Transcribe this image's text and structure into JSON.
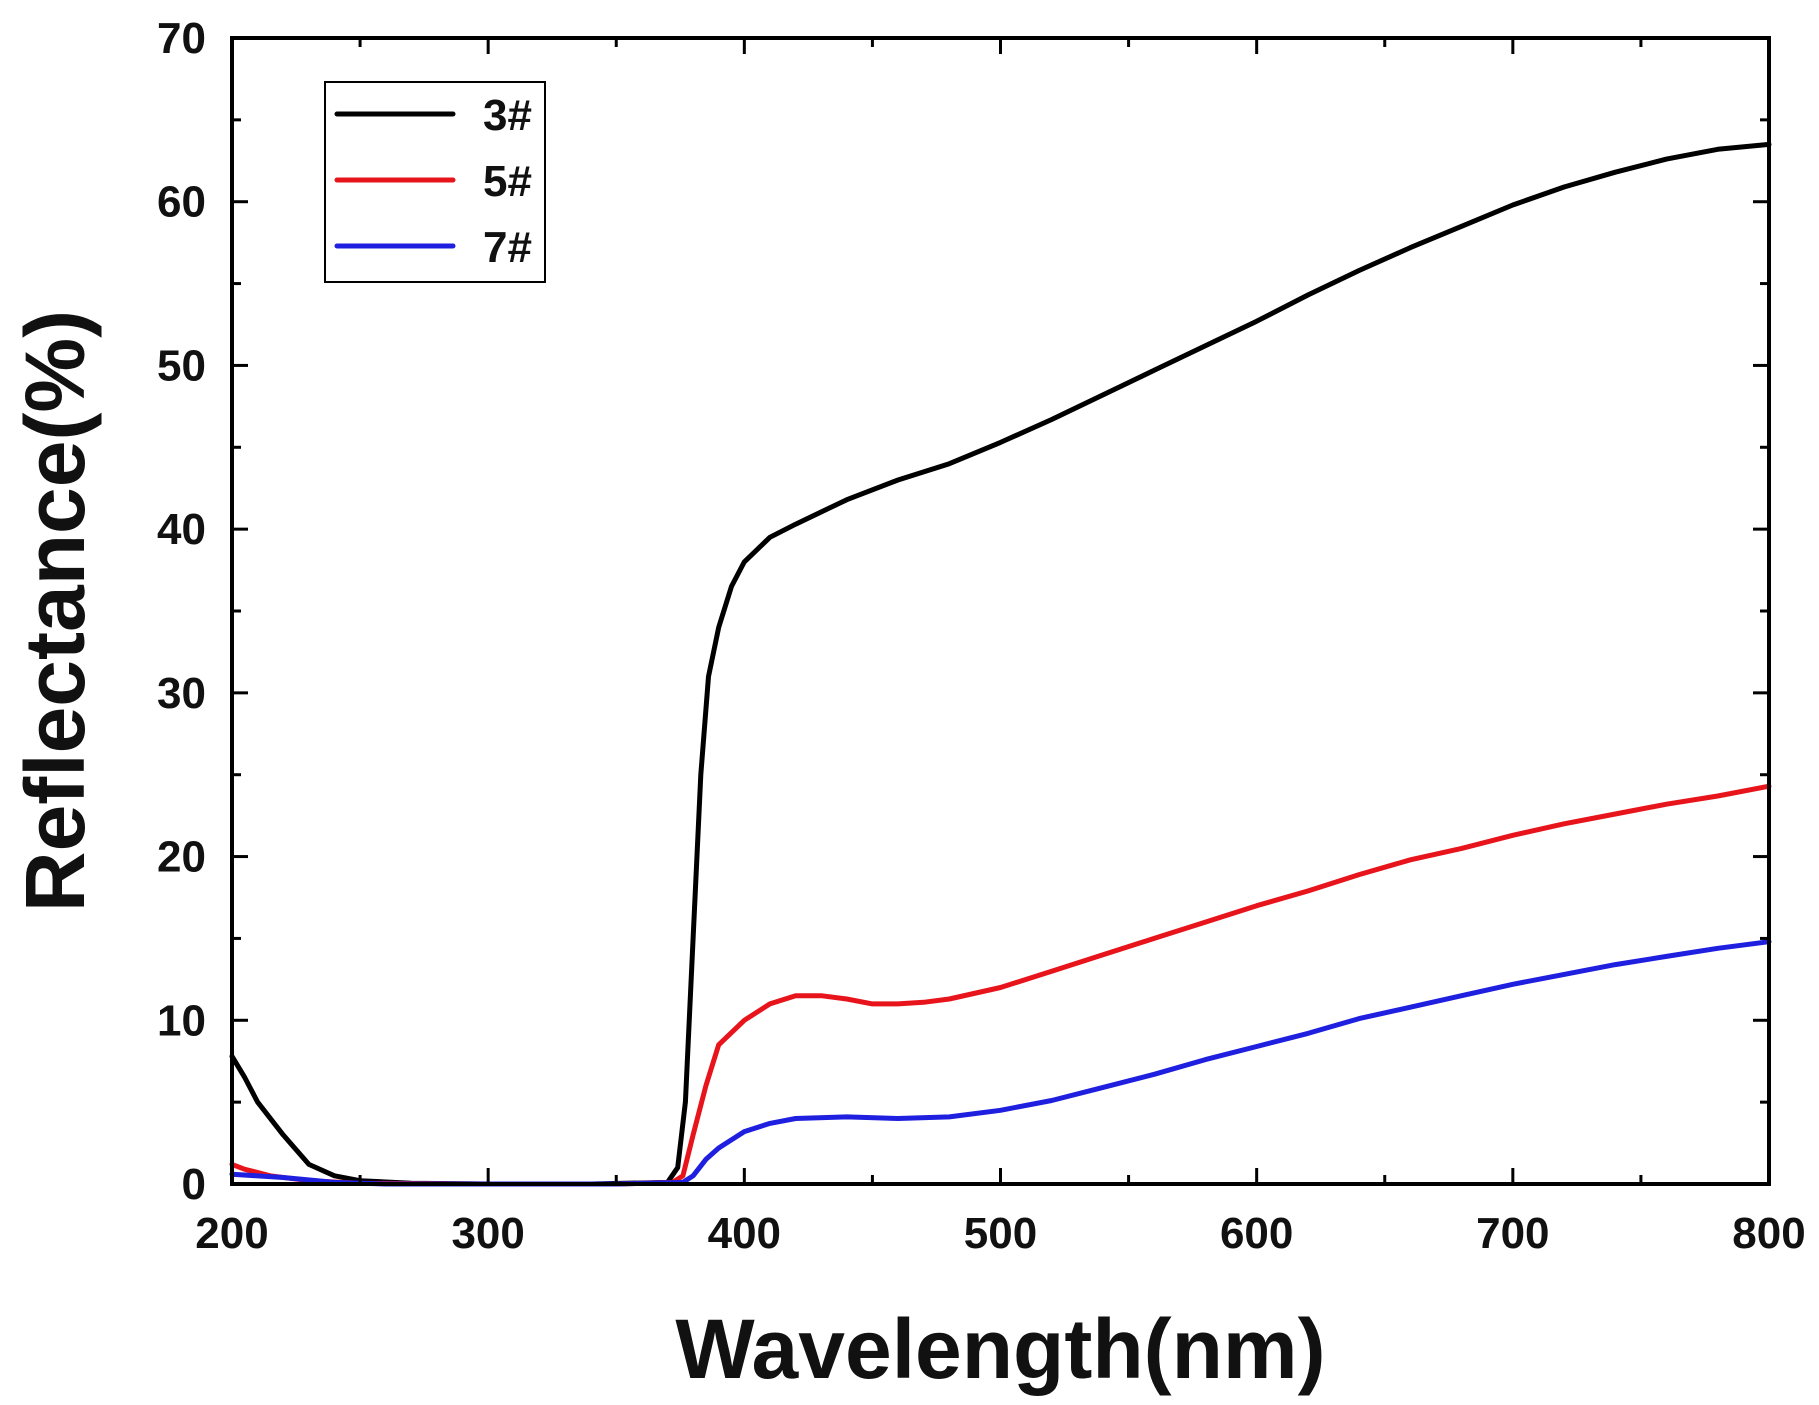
{
  "chart_data": {
    "type": "line",
    "title": "",
    "xlabel": "Wavelength(nm)",
    "ylabel": "Reflectance(%)",
    "xlim": [
      200,
      800
    ],
    "ylim": [
      0,
      70
    ],
    "xticks": [
      200,
      300,
      400,
      500,
      600,
      700,
      800
    ],
    "yticks": [
      0,
      10,
      20,
      30,
      40,
      50,
      60,
      70
    ],
    "grid": false,
    "legend_position": "top-left",
    "series": [
      {
        "name": "3#",
        "color": "#000000",
        "x": [
          200,
          205,
          210,
          220,
          230,
          240,
          250,
          270,
          300,
          340,
          370,
          374,
          377,
          380,
          383,
          386,
          390,
          395,
          400,
          410,
          420,
          440,
          460,
          480,
          500,
          520,
          540,
          560,
          580,
          600,
          620,
          640,
          660,
          680,
          700,
          720,
          740,
          760,
          780,
          800
        ],
        "y": [
          7.8,
          6.5,
          5,
          3,
          1.2,
          0.5,
          0.2,
          0.05,
          0,
          0,
          0.1,
          1,
          5,
          15,
          25,
          31,
          34,
          36.5,
          38,
          39.5,
          40.3,
          41.8,
          43,
          44,
          45.3,
          46.7,
          48.2,
          49.7,
          51.2,
          52.7,
          54.3,
          55.8,
          57.2,
          58.5,
          59.8,
          60.9,
          61.8,
          62.6,
          63.2,
          63.5
        ]
      },
      {
        "name": "5#",
        "color": "#e8141c",
        "x": [
          200,
          205,
          215,
          230,
          250,
          300,
          350,
          372,
          376,
          380,
          385,
          390,
          400,
          410,
          420,
          430,
          440,
          450,
          460,
          470,
          480,
          500,
          520,
          540,
          560,
          580,
          600,
          620,
          640,
          660,
          680,
          700,
          720,
          740,
          760,
          780,
          800
        ],
        "y": [
          1.2,
          0.9,
          0.5,
          0.2,
          0.05,
          0,
          0,
          0.1,
          0.5,
          3,
          6,
          8.5,
          10,
          11,
          11.5,
          11.5,
          11.3,
          11,
          11,
          11.1,
          11.3,
          12,
          13,
          14,
          15,
          16,
          17,
          17.9,
          18.9,
          19.8,
          20.5,
          21.3,
          22,
          22.6,
          23.2,
          23.7,
          24.3
        ]
      },
      {
        "name": "7#",
        "color": "#1f1fe0",
        "x": [
          200,
          220,
          240,
          260,
          300,
          350,
          376,
          380,
          385,
          390,
          400,
          410,
          420,
          440,
          460,
          480,
          500,
          520,
          540,
          560,
          580,
          600,
          620,
          640,
          660,
          680,
          700,
          720,
          740,
          760,
          780,
          800
        ],
        "y": [
          0.6,
          0.4,
          0.1,
          0,
          0,
          0,
          0.1,
          0.5,
          1.5,
          2.2,
          3.2,
          3.7,
          4,
          4.1,
          4,
          4.1,
          4.5,
          5.1,
          5.9,
          6.7,
          7.6,
          8.4,
          9.2,
          10.1,
          10.8,
          11.5,
          12.2,
          12.8,
          13.4,
          13.9,
          14.4,
          14.8
        ]
      }
    ]
  }
}
